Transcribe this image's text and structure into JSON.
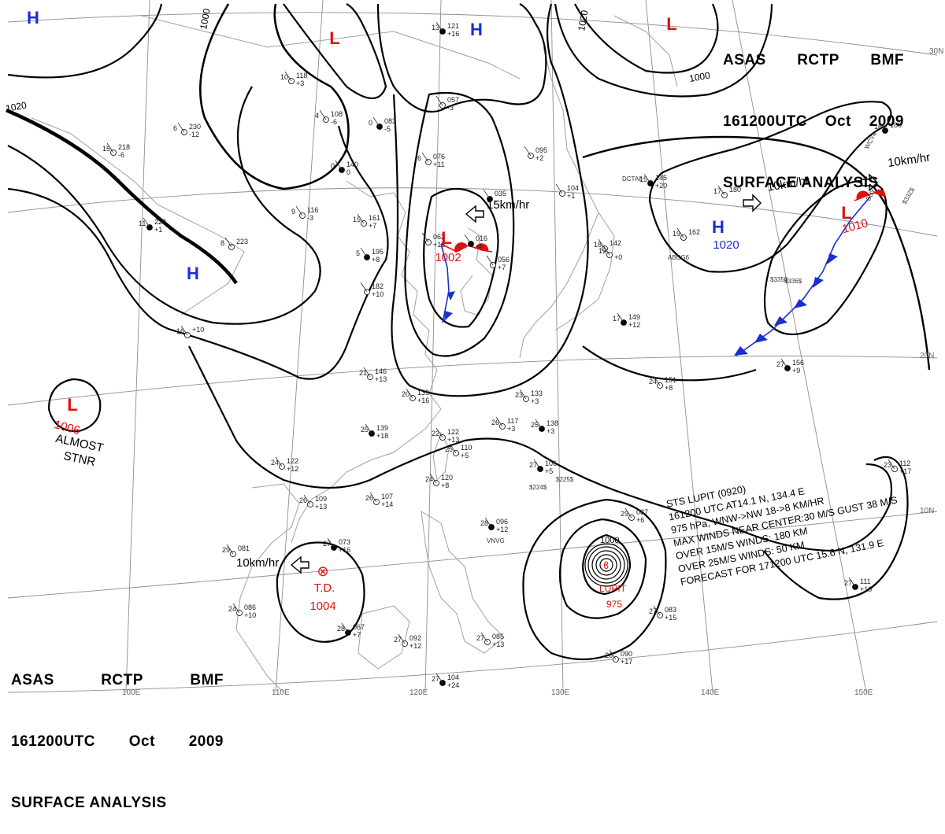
{
  "header": {
    "line1": [
      "ASAS",
      "RCTP",
      "BMF"
    ],
    "line2": [
      "161200UTC",
      "Oct",
      "2009"
    ],
    "line3": "SURFACE ANALYSIS"
  },
  "colors": {
    "low": "#e01010",
    "high": "#1a2fd0",
    "front_warm": "#e01010",
    "front_cold": "#1a2fd0",
    "isobar": "#000000",
    "geo": "#9a9a9a"
  },
  "isobar_labels": [
    "1020",
    "1000",
    "1000",
    "1020",
    "1000"
  ],
  "longitude_labels": [
    "100E",
    "110E",
    "120E",
    "130E",
    "140E",
    "150E"
  ],
  "latitude_labels": [
    "30N",
    "20N",
    "10N"
  ],
  "pressure_systems": [
    {
      "type": "H",
      "label": "H"
    },
    {
      "type": "H",
      "label": "H"
    },
    {
      "type": "H",
      "label": "H"
    },
    {
      "type": "L",
      "label": "L"
    },
    {
      "type": "L",
      "label": "L"
    },
    {
      "type": "L",
      "label": "L",
      "value": "1006",
      "note1": "ALMOST",
      "note2": "STNR"
    },
    {
      "type": "L",
      "label": "L",
      "value": "1002"
    },
    {
      "type": "H",
      "label": "H",
      "value": "1020"
    },
    {
      "type": "L",
      "label": "L",
      "value": "1010"
    }
  ],
  "motions": [
    "15km/hr",
    "10km/hr",
    "10km/hr",
    "10km/hr"
  ],
  "td": {
    "name": "T.D.",
    "value": "1004"
  },
  "typhoon": {
    "name": "LUPIT",
    "value": "975",
    "isobar": "1000"
  },
  "storm_info": [
    "STS  LUPIT  (0920)",
    "161200 UTC  AT14.1 N, 134.4 E",
    "975 hPa, WNW->NW  18->8 KM/HR",
    "MAX WINDS NEAR CENTER:30 M/S GUST 38 M/S",
    "OVER 15M/S WINDS: 180 KM",
    "OVER 25M/S WINDS: 50 KM",
    "FORECAST FOR 171200 UTC 15.6 N, 131.9 E"
  ],
  "station_plots": [
    {
      "t": "13",
      "p": "121",
      "d": "+16"
    },
    {
      "t": "15",
      "p": "218",
      "d": "-6"
    },
    {
      "t": "6",
      "p": "230",
      "d": "-12"
    },
    {
      "t": "11",
      "p": "229",
      "d": "+1"
    },
    {
      "t": "8",
      "p": "223",
      "d": ""
    },
    {
      "t": "9",
      "p": "116",
      "d": "-3"
    },
    {
      "t": "0",
      "p": "140",
      "d": "0"
    },
    {
      "t": "10",
      "p": "118",
      "d": "+3"
    },
    {
      "t": "4",
      "p": "108",
      "d": "-6"
    },
    {
      "t": "0",
      "p": "083",
      "d": "-5"
    },
    {
      "t": "",
      "p": "057",
      "d": "-3"
    },
    {
      "t": "6",
      "p": "076",
      "d": "+11"
    },
    {
      "t": "",
      "p": "035",
      "d": "-"
    },
    {
      "t": "",
      "p": "095",
      "d": "+2"
    },
    {
      "t": "15",
      "p": "161",
      "d": "+7"
    },
    {
      "t": "5",
      "p": "195",
      "d": "+8"
    },
    {
      "t": "",
      "p": "182",
      "d": "+10"
    },
    {
      "t": "",
      "p": "062",
      "d": "+15"
    },
    {
      "t": "",
      "p": "016",
      "d": "-4"
    },
    {
      "t": "",
      "p": "056",
      "d": "+7"
    },
    {
      "t": "",
      "p": "104",
      "d": "+1"
    },
    {
      "t": "15",
      "p": "145",
      "d": "+20"
    },
    {
      "t": "17",
      "p": "180",
      "d": ""
    },
    {
      "t": "19",
      "p": "162",
      "d": ""
    },
    {
      "t": "16",
      "p": "180",
      "d": ""
    },
    {
      "t": "21",
      "p": "146",
      "d": "+13"
    },
    {
      "t": "20",
      "p": "139",
      "d": "+16"
    },
    {
      "t": "25",
      "p": "139",
      "d": "+18"
    },
    {
      "t": "23",
      "p": "133",
      "d": "+3"
    },
    {
      "t": "26",
      "p": "117",
      "d": "+3"
    },
    {
      "t": "25",
      "p": "138",
      "d": "+3"
    },
    {
      "t": "22",
      "p": "122",
      "d": "+13"
    },
    {
      "t": "25",
      "p": "110",
      "d": "+5"
    },
    {
      "t": "27",
      "p": "106",
      "d": "+5"
    },
    {
      "t": "24",
      "p": "120",
      "d": "+8"
    },
    {
      "t": "24",
      "p": "151",
      "d": "+8"
    },
    {
      "t": "27",
      "p": "156",
      "d": "+9"
    },
    {
      "t": "24",
      "p": "122",
      "d": "+12"
    },
    {
      "t": "26",
      "p": "107",
      "d": "+14"
    },
    {
      "t": "28",
      "p": "096",
      "d": "+12"
    },
    {
      "t": "26",
      "p": "109",
      "d": "+13"
    },
    {
      "t": "29",
      "p": "087",
      "d": "+6"
    },
    {
      "t": "27",
      "p": "073",
      "d": "+16"
    },
    {
      "t": "29",
      "p": "081",
      "d": ""
    },
    {
      "t": "24",
      "p": "086",
      "d": "+10"
    },
    {
      "t": "28",
      "p": "067",
      "d": "+7"
    },
    {
      "t": "27",
      "p": "092",
      "d": "+12"
    },
    {
      "t": "27",
      "p": "085",
      "d": "+13"
    },
    {
      "t": "27",
      "p": "104",
      "d": "+24"
    },
    {
      "t": "26",
      "p": "090",
      "d": "+17"
    },
    {
      "t": "27",
      "p": "083",
      "d": "+15"
    },
    {
      "t": "27",
      "p": "111",
      "d": "+10"
    },
    {
      "t": "23",
      "p": "112",
      "d": "+17"
    },
    {
      "t": "16",
      "p": "+10",
      "d": ""
    },
    {
      "t": "17",
      "p": "149",
      "d": "+12"
    },
    {
      "t": "18",
      "p": "142",
      "d": ""
    },
    {
      "t": "13",
      "p": "",
      "d": "+0"
    }
  ],
  "station_codes": [
    "VNVG",
    "ABCG6",
    "DCTA8",
    "WCY4",
    "BUY",
    "$224$",
    "$335$",
    "$336$",
    "$33Z$",
    "$225$"
  ]
}
